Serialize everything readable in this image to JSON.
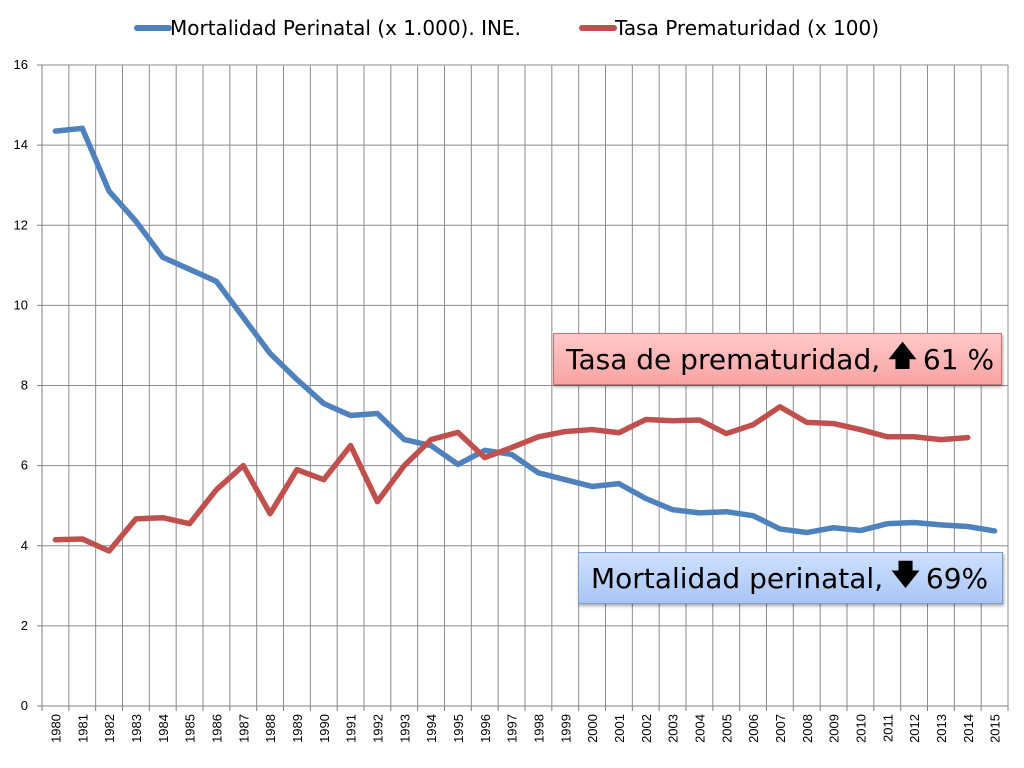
{
  "chart_data": {
    "type": "line",
    "title": "",
    "xlabel": "",
    "ylabel": "",
    "ylim": [
      0,
      16
    ],
    "yticks": [
      0,
      2,
      4,
      6,
      8,
      10,
      12,
      14,
      16
    ],
    "grid": true,
    "legend_position": "top",
    "x": [
      "1980",
      "1981",
      "1982",
      "1983",
      "1984",
      "1985",
      "1986",
      "1987",
      "1988",
      "1989",
      "1990",
      "1991",
      "1992",
      "1993",
      "1994",
      "1995",
      "1996",
      "1997",
      "1998",
      "1999",
      "2000",
      "2001",
      "2002",
      "2003",
      "2004",
      "2005",
      "2006",
      "2007",
      "2008",
      "2009",
      "2010",
      "2011",
      "2012",
      "2013",
      "2014",
      "2015"
    ],
    "series": [
      {
        "name": "Mortalidad Perinatal (x 1.000). INE.",
        "color": "#4f81bd",
        "values": [
          14.35,
          14.42,
          12.85,
          12.1,
          11.2,
          10.9,
          10.6,
          9.7,
          8.8,
          8.15,
          7.55,
          7.25,
          7.3,
          6.65,
          6.5,
          6.03,
          6.38,
          6.28,
          5.82,
          5.65,
          5.48,
          5.55,
          5.18,
          4.9,
          4.82,
          4.85,
          4.75,
          4.42,
          4.33,
          4.45,
          4.38,
          4.55,
          4.58,
          4.52,
          4.48,
          4.37
        ]
      },
      {
        "name": "Tasa Prematuridad (x 100)",
        "color": "#c0504d",
        "values": [
          4.15,
          4.17,
          3.87,
          4.67,
          4.7,
          4.55,
          5.4,
          6.0,
          4.8,
          5.9,
          5.65,
          6.5,
          5.1,
          6.0,
          6.65,
          6.83,
          6.2,
          6.45,
          6.72,
          6.85,
          6.9,
          6.82,
          7.15,
          7.12,
          7.14,
          6.8,
          7.02,
          7.47,
          7.08,
          7.05,
          6.9,
          6.72,
          6.72,
          6.65,
          6.7,
          null
        ]
      }
    ],
    "annotations": [
      {
        "text": "Tasa de prematuridad,",
        "arrow": "up",
        "value": "61 %",
        "color": "#f9a3a3"
      },
      {
        "text": "Mortalidad perinatal,",
        "arrow": "down",
        "value": "69%",
        "color": "#a9c6f5"
      }
    ]
  }
}
